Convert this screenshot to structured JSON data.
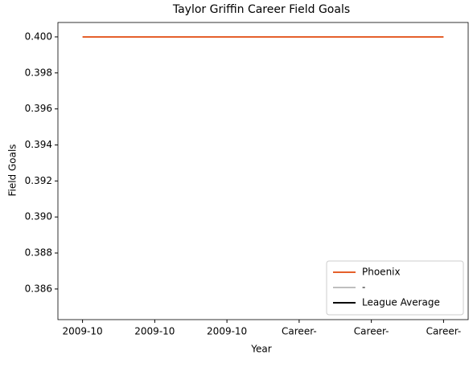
{
  "chart_data": {
    "type": "line",
    "title": "Taylor Griffin Career Field Goals",
    "x_label": "Year",
    "y_label": "Field Goals",
    "categories": [
      "2009-10",
      "2009-10",
      "2009-10",
      "Career-",
      "Career-",
      "Career-"
    ],
    "series": [
      {
        "name": "Phoenix",
        "color": "#e5602b",
        "values": [
          0.4,
          0.4,
          0.4,
          0.4,
          0.4,
          0.4
        ]
      },
      {
        "name": "-",
        "color": "#bfbfbf",
        "values": [
          null,
          null,
          null,
          null,
          null,
          null
        ]
      },
      {
        "name": "League Average",
        "color": "#000000",
        "values": [
          null,
          null,
          null,
          null,
          null,
          null
        ]
      }
    ],
    "ylim": [
      0.3843,
      0.4008
    ],
    "yticks": [
      0.386,
      0.388,
      {
        "value": 0.39,
        "label": "0.390"
      },
      0.392,
      0.394,
      0.396,
      0.398,
      {
        "value": 0.4,
        "label": "0.400"
      }
    ],
    "grid": false,
    "legend": "lower right"
  }
}
